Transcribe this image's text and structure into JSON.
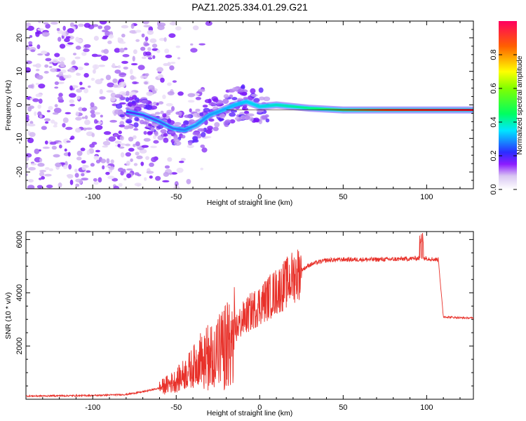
{
  "title": "PAZ1.2025.334.01.29.G21",
  "chart_data": [
    {
      "type": "heatmap",
      "name": "spectrogram",
      "xlabel": "Height of straight line (km)",
      "ylabel": "Frequency (Hz)",
      "xlim": [
        -140,
        128
      ],
      "ylim": [
        -25,
        25
      ],
      "xticks": [
        -100,
        -50,
        0,
        50,
        100
      ],
      "yticks": [
        -20,
        -10,
        0,
        10,
        20
      ],
      "ridge": [
        {
          "x": -80,
          "y": -2
        },
        {
          "x": -70,
          "y": -3
        },
        {
          "x": -60,
          "y": -5
        },
        {
          "x": -52,
          "y": -7
        },
        {
          "x": -45,
          "y": -7.5
        },
        {
          "x": -38,
          "y": -6
        },
        {
          "x": -30,
          "y": -3
        },
        {
          "x": -22,
          "y": -1.5
        },
        {
          "x": -15,
          "y": 0
        },
        {
          "x": -8,
          "y": 1
        },
        {
          "x": 0,
          "y": -0.5
        },
        {
          "x": 10,
          "y": 0
        },
        {
          "x": 20,
          "y": -0.5
        },
        {
          "x": 30,
          "y": -1
        },
        {
          "x": 50,
          "y": -1.5
        },
        {
          "x": 90,
          "y": -1.5
        },
        {
          "x": 128,
          "y": -1.5
        }
      ],
      "colorbar": {
        "label": "Normalized spectral amplitude",
        "range": [
          0,
          1
        ],
        "ticks": [
          "0.0",
          "0.2",
          "0.4",
          "0.6",
          "0.8"
        ]
      }
    },
    {
      "type": "line",
      "name": "snr",
      "xlabel": "Height of straight line (km)",
      "ylabel": "SNR (10 * v/v)",
      "xlim": [
        -140,
        128
      ],
      "ylim": [
        0,
        6300
      ],
      "xticks": [
        -100,
        -50,
        0,
        50,
        100
      ],
      "yticks": [
        2000,
        4000,
        6000
      ],
      "color": "#e8312a",
      "series": [
        {
          "name": "SNR",
          "x": [
            -140,
            -120,
            -100,
            -80,
            -70,
            -60,
            -50,
            -40,
            -35,
            -30,
            -25,
            -20,
            -15,
            -10,
            -5,
            0,
            5,
            10,
            15,
            20,
            25,
            30,
            35,
            40,
            50,
            60,
            70,
            80,
            90,
            95,
            100,
            105,
            107,
            110,
            115,
            120,
            128
          ],
          "y": [
            120,
            130,
            140,
            180,
            280,
            420,
            700,
            1200,
            1600,
            1800,
            2000,
            2200,
            2600,
            3000,
            3300,
            3550,
            3800,
            4050,
            4300,
            4600,
            4850,
            5050,
            5150,
            5220,
            5250,
            5250,
            5250,
            5260,
            5280,
            5300,
            5300,
            5250,
            5250,
            3100,
            3080,
            3060,
            3050
          ]
        }
      ]
    }
  ]
}
